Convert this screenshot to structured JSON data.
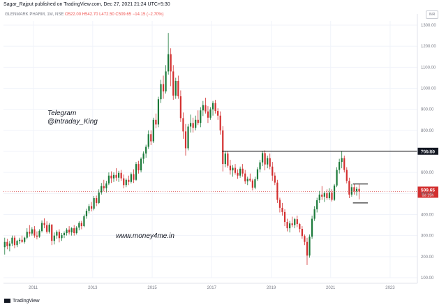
{
  "header": {
    "publisher_line": "Sagar_Rajput published on TradingView.com, Dec 27, 2021 21:24 UTC+5:30"
  },
  "legend": {
    "symbol": "GLENMARK PHARM, 1M, NSE",
    "ohlc": "O522.00 H542.70 L472.50 C509.65 −14.15 (−2.70%)"
  },
  "currency_button": "INR",
  "overlay": {
    "telegram_line1": "Telegram",
    "telegram_line2": "@Intraday_King",
    "website": "www.money4me.in"
  },
  "footer": {
    "brand": "TradingView"
  },
  "colors": {
    "up": "#1b7a3a",
    "down": "#d32f2f",
    "level_line": "#000000",
    "price_badge": "#d32f2f",
    "level_badge": "#131722"
  },
  "chart_data": {
    "type": "candlestick",
    "timeframe": "monthly",
    "ylim": [
      100,
      1320
    ],
    "x_range": [
      "2010-01",
      "2023-12"
    ],
    "y_ticks": [
      "100.00",
      "200.00",
      "300.00",
      "400.00",
      "500.00",
      "600.00",
      "700.00",
      "800.00",
      "900.00",
      "1000.00",
      "1100.00",
      "1200.00",
      "1300.00"
    ],
    "x_ticks": [
      "2011",
      "2013",
      "2015",
      "2017",
      "2019",
      "2021",
      "2023"
    ],
    "resistance_level": 700.8,
    "resistance_label": "700.80",
    "last_price_label": "509.65",
    "countdown_label": "3d 19h",
    "last_price": 509.65,
    "consolidation_box": {
      "from": "2021-10",
      "to": "2022-04",
      "top": 545,
      "bottom": 455
    },
    "candles": [
      {
        "t": "2010-01",
        "o": 245,
        "h": 290,
        "l": 210,
        "c": 270
      },
      {
        "t": "2010-02",
        "o": 270,
        "h": 285,
        "l": 235,
        "c": 250
      },
      {
        "t": "2010-03",
        "o": 250,
        "h": 275,
        "l": 225,
        "c": 262
      },
      {
        "t": "2010-04",
        "o": 262,
        "h": 300,
        "l": 250,
        "c": 290
      },
      {
        "t": "2010-05",
        "o": 290,
        "h": 300,
        "l": 240,
        "c": 255
      },
      {
        "t": "2010-06",
        "o": 255,
        "h": 280,
        "l": 245,
        "c": 275
      },
      {
        "t": "2010-07",
        "o": 275,
        "h": 290,
        "l": 260,
        "c": 280
      },
      {
        "t": "2010-08",
        "o": 280,
        "h": 300,
        "l": 265,
        "c": 270
      },
      {
        "t": "2010-09",
        "o": 270,
        "h": 295,
        "l": 262,
        "c": 290
      },
      {
        "t": "2010-10",
        "o": 290,
        "h": 335,
        "l": 282,
        "c": 318
      },
      {
        "t": "2010-11",
        "o": 318,
        "h": 350,
        "l": 295,
        "c": 310
      },
      {
        "t": "2010-12",
        "o": 310,
        "h": 340,
        "l": 300,
        "c": 330
      },
      {
        "t": "2011-01",
        "o": 330,
        "h": 345,
        "l": 290,
        "c": 300
      },
      {
        "t": "2011-02",
        "o": 300,
        "h": 320,
        "l": 282,
        "c": 295
      },
      {
        "t": "2011-03",
        "o": 295,
        "h": 330,
        "l": 290,
        "c": 322
      },
      {
        "t": "2011-04",
        "o": 322,
        "h": 372,
        "l": 315,
        "c": 360
      },
      {
        "t": "2011-05",
        "o": 360,
        "h": 382,
        "l": 335,
        "c": 350
      },
      {
        "t": "2011-06",
        "o": 350,
        "h": 368,
        "l": 310,
        "c": 318
      },
      {
        "t": "2011-07",
        "o": 318,
        "h": 360,
        "l": 310,
        "c": 352
      },
      {
        "t": "2011-08",
        "o": 352,
        "h": 355,
        "l": 255,
        "c": 275
      },
      {
        "t": "2011-09",
        "o": 275,
        "h": 315,
        "l": 258,
        "c": 300
      },
      {
        "t": "2011-10",
        "o": 300,
        "h": 325,
        "l": 285,
        "c": 318
      },
      {
        "t": "2011-11",
        "o": 318,
        "h": 330,
        "l": 268,
        "c": 288
      },
      {
        "t": "2011-12",
        "o": 288,
        "h": 312,
        "l": 275,
        "c": 302
      },
      {
        "t": "2012-01",
        "o": 302,
        "h": 320,
        "l": 288,
        "c": 312
      },
      {
        "t": "2012-02",
        "o": 312,
        "h": 335,
        "l": 300,
        "c": 328
      },
      {
        "t": "2012-03",
        "o": 328,
        "h": 345,
        "l": 305,
        "c": 315
      },
      {
        "t": "2012-04",
        "o": 315,
        "h": 340,
        "l": 300,
        "c": 335
      },
      {
        "t": "2012-05",
        "o": 335,
        "h": 350,
        "l": 300,
        "c": 312
      },
      {
        "t": "2012-06",
        "o": 312,
        "h": 345,
        "l": 305,
        "c": 338
      },
      {
        "t": "2012-07",
        "o": 338,
        "h": 368,
        "l": 325,
        "c": 360
      },
      {
        "t": "2012-08",
        "o": 360,
        "h": 370,
        "l": 330,
        "c": 345
      },
      {
        "t": "2012-09",
        "o": 345,
        "h": 400,
        "l": 340,
        "c": 392
      },
      {
        "t": "2012-10",
        "o": 392,
        "h": 428,
        "l": 380,
        "c": 418
      },
      {
        "t": "2012-11",
        "o": 418,
        "h": 450,
        "l": 405,
        "c": 440
      },
      {
        "t": "2012-12",
        "o": 440,
        "h": 460,
        "l": 415,
        "c": 428
      },
      {
        "t": "2013-01",
        "o": 428,
        "h": 488,
        "l": 420,
        "c": 478
      },
      {
        "t": "2013-02",
        "o": 478,
        "h": 490,
        "l": 440,
        "c": 455
      },
      {
        "t": "2013-03",
        "o": 455,
        "h": 520,
        "l": 450,
        "c": 505
      },
      {
        "t": "2013-04",
        "o": 505,
        "h": 550,
        "l": 495,
        "c": 535
      },
      {
        "t": "2013-05",
        "o": 535,
        "h": 565,
        "l": 510,
        "c": 525
      },
      {
        "t": "2013-06",
        "o": 525,
        "h": 560,
        "l": 505,
        "c": 548
      },
      {
        "t": "2013-07",
        "o": 548,
        "h": 600,
        "l": 540,
        "c": 585
      },
      {
        "t": "2013-08",
        "o": 585,
        "h": 605,
        "l": 550,
        "c": 572
      },
      {
        "t": "2013-09",
        "o": 572,
        "h": 600,
        "l": 555,
        "c": 588
      },
      {
        "t": "2013-10",
        "o": 588,
        "h": 620,
        "l": 560,
        "c": 575
      },
      {
        "t": "2013-11",
        "o": 575,
        "h": 608,
        "l": 555,
        "c": 598
      },
      {
        "t": "2013-12",
        "o": 598,
        "h": 612,
        "l": 560,
        "c": 572
      },
      {
        "t": "2014-01",
        "o": 572,
        "h": 590,
        "l": 525,
        "c": 540
      },
      {
        "t": "2014-02",
        "o": 540,
        "h": 572,
        "l": 530,
        "c": 565
      },
      {
        "t": "2014-03",
        "o": 565,
        "h": 585,
        "l": 540,
        "c": 555
      },
      {
        "t": "2014-04",
        "o": 555,
        "h": 600,
        "l": 548,
        "c": 592
      },
      {
        "t": "2014-05",
        "o": 592,
        "h": 615,
        "l": 550,
        "c": 565
      },
      {
        "t": "2014-06",
        "o": 565,
        "h": 650,
        "l": 560,
        "c": 640
      },
      {
        "t": "2014-07",
        "o": 640,
        "h": 655,
        "l": 595,
        "c": 610
      },
      {
        "t": "2014-08",
        "o": 610,
        "h": 672,
        "l": 600,
        "c": 665
      },
      {
        "t": "2014-09",
        "o": 665,
        "h": 700,
        "l": 642,
        "c": 690
      },
      {
        "t": "2014-10",
        "o": 690,
        "h": 732,
        "l": 670,
        "c": 722
      },
      {
        "t": "2014-11",
        "o": 722,
        "h": 800,
        "l": 712,
        "c": 782
      },
      {
        "t": "2014-12",
        "o": 782,
        "h": 800,
        "l": 730,
        "c": 748
      },
      {
        "t": "2015-01",
        "o": 748,
        "h": 860,
        "l": 740,
        "c": 850
      },
      {
        "t": "2015-02",
        "o": 850,
        "h": 880,
        "l": 810,
        "c": 828
      },
      {
        "t": "2015-03",
        "o": 828,
        "h": 960,
        "l": 815,
        "c": 948
      },
      {
        "t": "2015-04",
        "o": 948,
        "h": 1040,
        "l": 930,
        "c": 1020
      },
      {
        "t": "2015-05",
        "o": 1020,
        "h": 1060,
        "l": 950,
        "c": 985
      },
      {
        "t": "2015-06",
        "o": 985,
        "h": 1110,
        "l": 975,
        "c": 1080
      },
      {
        "t": "2015-07",
        "o": 1080,
        "h": 1263,
        "l": 1065,
        "c": 1162
      },
      {
        "t": "2015-08",
        "o": 1162,
        "h": 1190,
        "l": 1010,
        "c": 1080
      },
      {
        "t": "2015-09",
        "o": 1080,
        "h": 1110,
        "l": 945,
        "c": 965
      },
      {
        "t": "2015-10",
        "o": 965,
        "h": 1050,
        "l": 950,
        "c": 1035
      },
      {
        "t": "2015-11",
        "o": 1035,
        "h": 1060,
        "l": 950,
        "c": 962
      },
      {
        "t": "2015-12",
        "o": 962,
        "h": 990,
        "l": 840,
        "c": 858
      },
      {
        "t": "2016-01",
        "o": 858,
        "h": 885,
        "l": 760,
        "c": 795
      },
      {
        "t": "2016-02",
        "o": 795,
        "h": 830,
        "l": 680,
        "c": 715
      },
      {
        "t": "2016-03",
        "o": 715,
        "h": 830,
        "l": 705,
        "c": 818
      },
      {
        "t": "2016-04",
        "o": 818,
        "h": 875,
        "l": 790,
        "c": 835
      },
      {
        "t": "2016-05",
        "o": 835,
        "h": 860,
        "l": 790,
        "c": 812
      },
      {
        "t": "2016-06",
        "o": 812,
        "h": 870,
        "l": 800,
        "c": 850
      },
      {
        "t": "2016-07",
        "o": 850,
        "h": 895,
        "l": 825,
        "c": 835
      },
      {
        "t": "2016-08",
        "o": 835,
        "h": 910,
        "l": 815,
        "c": 895
      },
      {
        "t": "2016-09",
        "o": 895,
        "h": 940,
        "l": 868,
        "c": 920
      },
      {
        "t": "2016-10",
        "o": 920,
        "h": 955,
        "l": 880,
        "c": 890
      },
      {
        "t": "2016-11",
        "o": 890,
        "h": 915,
        "l": 835,
        "c": 860
      },
      {
        "t": "2016-12",
        "o": 860,
        "h": 910,
        "l": 850,
        "c": 900
      },
      {
        "t": "2017-01",
        "o": 900,
        "h": 940,
        "l": 870,
        "c": 930
      },
      {
        "t": "2017-02",
        "o": 930,
        "h": 945,
        "l": 880,
        "c": 892
      },
      {
        "t": "2017-03",
        "o": 892,
        "h": 905,
        "l": 850,
        "c": 870
      },
      {
        "t": "2017-04",
        "o": 870,
        "h": 890,
        "l": 780,
        "c": 800
      },
      {
        "t": "2017-05",
        "o": 800,
        "h": 820,
        "l": 605,
        "c": 640
      },
      {
        "t": "2017-06",
        "o": 640,
        "h": 700,
        "l": 625,
        "c": 690
      },
      {
        "t": "2017-07",
        "o": 690,
        "h": 700,
        "l": 622,
        "c": 632
      },
      {
        "t": "2017-08",
        "o": 632,
        "h": 660,
        "l": 590,
        "c": 610
      },
      {
        "t": "2017-09",
        "o": 610,
        "h": 635,
        "l": 580,
        "c": 622
      },
      {
        "t": "2017-10",
        "o": 622,
        "h": 640,
        "l": 590,
        "c": 598
      },
      {
        "t": "2017-11",
        "o": 598,
        "h": 615,
        "l": 570,
        "c": 585
      },
      {
        "t": "2017-12",
        "o": 585,
        "h": 628,
        "l": 575,
        "c": 618
      },
      {
        "t": "2018-01",
        "o": 618,
        "h": 640,
        "l": 580,
        "c": 595
      },
      {
        "t": "2018-02",
        "o": 595,
        "h": 612,
        "l": 545,
        "c": 558
      },
      {
        "t": "2018-03",
        "o": 558,
        "h": 580,
        "l": 540,
        "c": 570
      },
      {
        "t": "2018-04",
        "o": 570,
        "h": 595,
        "l": 555,
        "c": 562
      },
      {
        "t": "2018-05",
        "o": 562,
        "h": 570,
        "l": 515,
        "c": 528
      },
      {
        "t": "2018-06",
        "o": 528,
        "h": 580,
        "l": 520,
        "c": 568
      },
      {
        "t": "2018-07",
        "o": 568,
        "h": 625,
        "l": 560,
        "c": 615
      },
      {
        "t": "2018-08",
        "o": 615,
        "h": 660,
        "l": 600,
        "c": 648
      },
      {
        "t": "2018-09",
        "o": 648,
        "h": 702,
        "l": 630,
        "c": 692
      },
      {
        "t": "2018-10",
        "o": 692,
        "h": 705,
        "l": 610,
        "c": 638
      },
      {
        "t": "2018-11",
        "o": 638,
        "h": 680,
        "l": 620,
        "c": 668
      },
      {
        "t": "2018-12",
        "o": 668,
        "h": 690,
        "l": 615,
        "c": 628
      },
      {
        "t": "2019-01",
        "o": 628,
        "h": 650,
        "l": 560,
        "c": 585
      },
      {
        "t": "2019-02",
        "o": 585,
        "h": 600,
        "l": 540,
        "c": 552
      },
      {
        "t": "2019-03",
        "o": 552,
        "h": 565,
        "l": 455,
        "c": 470
      },
      {
        "t": "2019-04",
        "o": 470,
        "h": 480,
        "l": 410,
        "c": 432
      },
      {
        "t": "2019-05",
        "o": 432,
        "h": 455,
        "l": 395,
        "c": 412
      },
      {
        "t": "2019-06",
        "o": 412,
        "h": 425,
        "l": 345,
        "c": 365
      },
      {
        "t": "2019-07",
        "o": 365,
        "h": 380,
        "l": 320,
        "c": 335
      },
      {
        "t": "2019-08",
        "o": 335,
        "h": 370,
        "l": 315,
        "c": 358
      },
      {
        "t": "2019-09",
        "o": 358,
        "h": 390,
        "l": 340,
        "c": 350
      },
      {
        "t": "2019-10",
        "o": 350,
        "h": 385,
        "l": 335,
        "c": 378
      },
      {
        "t": "2019-11",
        "o": 378,
        "h": 395,
        "l": 340,
        "c": 355
      },
      {
        "t": "2019-12",
        "o": 355,
        "h": 360,
        "l": 315,
        "c": 332
      },
      {
        "t": "2020-01",
        "o": 332,
        "h": 345,
        "l": 285,
        "c": 298
      },
      {
        "t": "2020-02",
        "o": 298,
        "h": 305,
        "l": 255,
        "c": 270
      },
      {
        "t": "2020-03",
        "o": 270,
        "h": 290,
        "l": 160,
        "c": 205
      },
      {
        "t": "2020-04",
        "o": 205,
        "h": 305,
        "l": 195,
        "c": 295
      },
      {
        "t": "2020-05",
        "o": 295,
        "h": 395,
        "l": 285,
        "c": 380
      },
      {
        "t": "2020-06",
        "o": 380,
        "h": 440,
        "l": 370,
        "c": 425
      },
      {
        "t": "2020-07",
        "o": 425,
        "h": 480,
        "l": 410,
        "c": 468
      },
      {
        "t": "2020-08",
        "o": 468,
        "h": 512,
        "l": 455,
        "c": 495
      },
      {
        "t": "2020-09",
        "o": 495,
        "h": 535,
        "l": 470,
        "c": 485
      },
      {
        "t": "2020-10",
        "o": 485,
        "h": 510,
        "l": 460,
        "c": 502
      },
      {
        "t": "2020-11",
        "o": 502,
        "h": 520,
        "l": 470,
        "c": 478
      },
      {
        "t": "2020-12",
        "o": 478,
        "h": 525,
        "l": 470,
        "c": 505
      },
      {
        "t": "2021-01",
        "o": 505,
        "h": 520,
        "l": 462,
        "c": 470
      },
      {
        "t": "2021-02",
        "o": 470,
        "h": 545,
        "l": 465,
        "c": 538
      },
      {
        "t": "2021-03",
        "o": 538,
        "h": 625,
        "l": 530,
        "c": 612
      },
      {
        "t": "2021-04",
        "o": 612,
        "h": 665,
        "l": 595,
        "c": 650
      },
      {
        "t": "2021-05",
        "o": 650,
        "h": 700,
        "l": 620,
        "c": 668
      },
      {
        "t": "2021-06",
        "o": 668,
        "h": 680,
        "l": 600,
        "c": 612
      },
      {
        "t": "2021-07",
        "o": 612,
        "h": 625,
        "l": 548,
        "c": 560
      },
      {
        "t": "2021-08",
        "o": 560,
        "h": 575,
        "l": 478,
        "c": 495
      },
      {
        "t": "2021-09",
        "o": 495,
        "h": 545,
        "l": 485,
        "c": 530
      },
      {
        "t": "2021-10",
        "o": 530,
        "h": 545,
        "l": 495,
        "c": 510
      },
      {
        "t": "2021-11",
        "o": 510,
        "h": 532,
        "l": 490,
        "c": 522
      },
      {
        "t": "2021-12",
        "o": 522,
        "h": 542.7,
        "l": 472.5,
        "c": 509.65
      }
    ]
  }
}
